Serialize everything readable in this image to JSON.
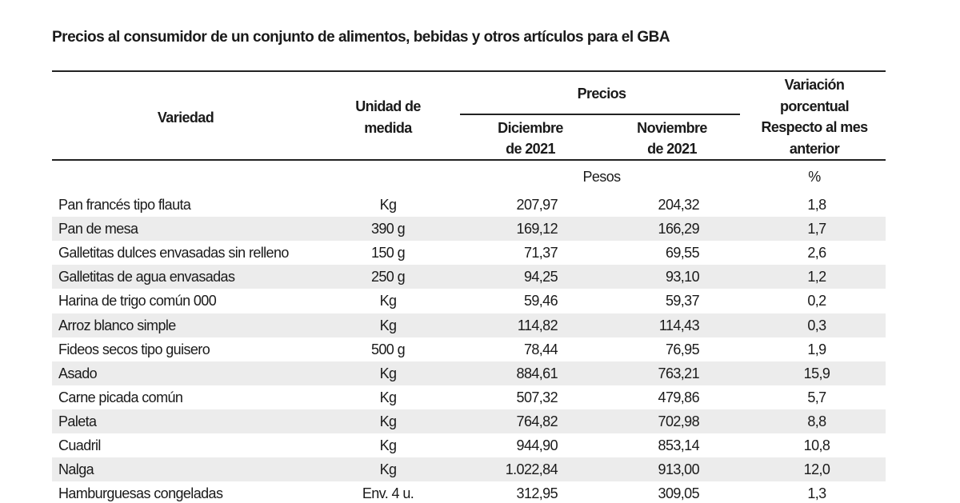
{
  "title": "Precios al consumidor de un conjunto de alimentos, bebidas y otros artículos para el GBA",
  "table": {
    "header": {
      "variedad": "Variedad",
      "unidad": [
        "Unidad de",
        "medida"
      ],
      "precios": "Precios",
      "diciembre": [
        "Diciembre",
        "de 2021"
      ],
      "noviembre": [
        "Noviembre",
        "de 2021"
      ],
      "variacion": [
        "Variación",
        "porcentual",
        "Respecto al mes",
        "anterior"
      ]
    },
    "units": {
      "precios": "Pesos",
      "variacion": "%"
    },
    "rows": [
      [
        "Pan francés tipo flauta",
        "Kg",
        "207,97",
        "204,32",
        "1,8"
      ],
      [
        "Pan de mesa",
        "390 g",
        "169,12",
        "166,29",
        "1,7"
      ],
      [
        "Galletitas dulces envasadas sin relleno",
        "150 g",
        "71,37",
        "69,55",
        "2,6"
      ],
      [
        "Galletitas de agua envasadas",
        "250 g",
        "94,25",
        "93,10",
        "1,2"
      ],
      [
        "Harina de trigo común 000",
        "Kg",
        "59,46",
        "59,37",
        "0,2"
      ],
      [
        "Arroz blanco simple",
        "Kg",
        "114,82",
        "114,43",
        "0,3"
      ],
      [
        "Fideos secos tipo guisero",
        "500 g",
        "78,44",
        "76,95",
        "1,9"
      ],
      [
        "Asado",
        "Kg",
        "884,61",
        "763,21",
        "15,9"
      ],
      [
        "Carne picada común",
        "Kg",
        "507,32",
        "479,86",
        "5,7"
      ],
      [
        "Paleta",
        "Kg",
        "764,82",
        "702,98",
        "8,8"
      ],
      [
        "Cuadril",
        "Kg",
        "944,90",
        "853,14",
        "10,8"
      ],
      [
        "Nalga",
        "Kg",
        "1.022,84",
        "913,00",
        "12,0"
      ],
      [
        "Hamburguesas congeladas",
        "Env. 4 u.",
        "312,95",
        "309,05",
        "1,3"
      ]
    ]
  }
}
